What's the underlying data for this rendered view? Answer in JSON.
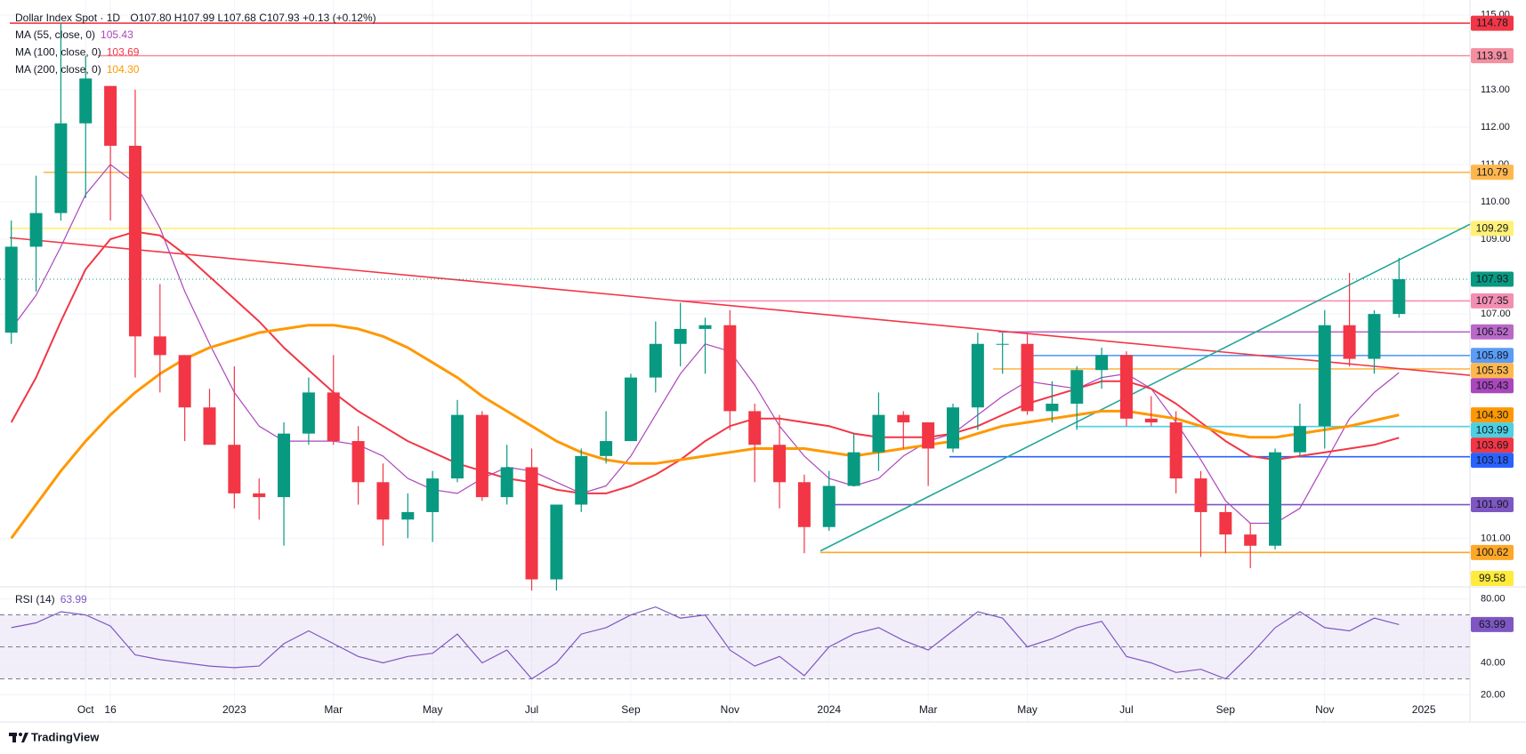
{
  "chart_data": {
    "type": "candlestick",
    "title": "Dollar Index Spot · 1D",
    "quote": "O107.80 H107.99 L107.68 C107.93 +0.13 (+0.12%)",
    "categories": [
      null,
      null,
      null,
      "Oct",
      "16",
      null,
      null,
      null,
      null,
      "2023",
      null,
      null,
      null,
      "Mar",
      null,
      null,
      null,
      "May",
      null,
      null,
      null,
      "Jul",
      null,
      null,
      null,
      "Sep",
      null,
      null,
      null,
      "Nov",
      null,
      null,
      null,
      "2024",
      null,
      null,
      null,
      "Mar",
      null,
      null,
      null,
      "May",
      null,
      null,
      null,
      "Jul",
      null,
      null,
      null,
      "Sep",
      null,
      null,
      null,
      "Nov",
      null,
      null,
      null,
      "2025"
    ],
    "open": [
      106.5,
      108.8,
      109.7,
      112.1,
      113.1,
      111.5,
      106.4,
      105.9,
      104.5,
      103.5,
      102.2,
      102.1,
      103.8,
      104.9,
      103.6,
      102.5,
      101.5,
      101.7,
      102.6,
      104.3,
      102.1,
      102.9,
      99.9,
      101.9,
      103.2,
      103.6,
      105.3,
      106.2,
      106.6,
      106.7,
      104.4,
      103.5,
      102.5,
      101.3,
      102.4,
      103.3,
      104.3,
      104.1,
      103.4,
      104.5,
      106.2,
      106.2,
      104.4,
      104.6,
      105.5,
      105.9,
      104.2,
      104.1,
      102.6,
      101.7,
      101.1,
      100.8,
      103.3,
      104.0,
      106.7,
      105.8,
      107.0,
      null
    ],
    "high": [
      109.5,
      110.7,
      114.78,
      113.91,
      113.1,
      113.0,
      107.8,
      105.9,
      105.0,
      105.6,
      102.6,
      104.1,
      105.3,
      105.9,
      104.0,
      103.0,
      102.2,
      102.8,
      104.7,
      104.4,
      103.5,
      103.4,
      101.9,
      103.4,
      104.4,
      105.4,
      106.8,
      107.3,
      106.9,
      107.1,
      104.6,
      104.3,
      102.7,
      102.8,
      103.8,
      104.9,
      104.4,
      104.1,
      104.6,
      106.5,
      106.5,
      106.5,
      105.2,
      105.6,
      106.1,
      106.0,
      104.8,
      104.4,
      102.8,
      101.9,
      101.4,
      103.4,
      104.6,
      107.1,
      108.1,
      107.1,
      108.5,
      null
    ],
    "low": [
      106.2,
      107.6,
      109.5,
      110.1,
      109.5,
      105.3,
      104.9,
      103.6,
      103.6,
      101.8,
      101.5,
      100.8,
      103.5,
      103.5,
      101.9,
      100.8,
      101.0,
      100.9,
      102.5,
      102.0,
      101.9,
      99.6,
      99.6,
      101.7,
      103.0,
      103.6,
      104.9,
      105.6,
      105.4,
      103.9,
      102.5,
      101.8,
      100.6,
      101.2,
      102.4,
      102.8,
      103.4,
      102.4,
      103.3,
      103.9,
      105.4,
      104.3,
      104.1,
      103.9,
      105.0,
      104.0,
      104.0,
      102.2,
      100.5,
      100.6,
      100.2,
      100.7,
      103.2,
      103.4,
      105.6,
      105.4,
      106.9,
      null
    ],
    "close": [
      108.8,
      109.7,
      112.1,
      113.3,
      111.5,
      106.4,
      105.9,
      104.5,
      103.5,
      102.2,
      102.1,
      103.8,
      104.9,
      103.6,
      102.5,
      101.5,
      101.7,
      102.6,
      104.3,
      102.1,
      102.9,
      99.9,
      101.9,
      103.2,
      103.6,
      105.3,
      106.2,
      106.6,
      106.7,
      104.4,
      103.5,
      102.5,
      101.3,
      102.4,
      103.3,
      104.3,
      104.1,
      103.4,
      104.5,
      106.2,
      106.2,
      104.4,
      104.6,
      105.5,
      105.9,
      104.2,
      104.1,
      102.6,
      101.7,
      101.1,
      100.8,
      103.3,
      104.0,
      106.7,
      105.8,
      107.0,
      107.93,
      null
    ],
    "color_up": "#089981",
    "color_down": "#f23645",
    "ylim": [
      99.7,
      115.4
    ],
    "yticks": [
      {
        "value": 115,
        "label": "115.00"
      },
      {
        "value": 113,
        "label": "113.00"
      },
      {
        "value": 112,
        "label": "112.00"
      },
      {
        "value": 111,
        "label": "111.00"
      },
      {
        "value": 110,
        "label": "110.00"
      },
      {
        "value": 109,
        "label": "109.00"
      },
      {
        "value": 107,
        "label": "107.00"
      },
      {
        "value": 101,
        "label": "101.00"
      }
    ],
    "grid": true,
    "series": [
      {
        "name": "MA (55, close, 0)",
        "color": "#ab47bc",
        "values": [
          106.6,
          107.5,
          108.8,
          110.2,
          111.0,
          110.5,
          109.3,
          107.6,
          106.2,
          104.9,
          104.0,
          103.6,
          103.6,
          103.6,
          103.5,
          103.2,
          102.6,
          102.3,
          102.2,
          102.6,
          102.9,
          102.8,
          102.5,
          102.2,
          102.4,
          103.2,
          104.3,
          105.4,
          106.2,
          106.0,
          105.1,
          104.0,
          103.2,
          102.6,
          102.4,
          102.6,
          103.2,
          103.6,
          103.8,
          104.3,
          104.8,
          105.2,
          105.1,
          105.0,
          105.3,
          105.4,
          105.0,
          104.1,
          103.1,
          102.0,
          101.4,
          101.4,
          101.8,
          103.0,
          104.2,
          104.9,
          105.43,
          null
        ]
      },
      {
        "name": "MA (100, close, 0)",
        "color": "#f23645",
        "values": [
          104.1,
          105.3,
          106.8,
          108.2,
          109.0,
          109.2,
          109.1,
          108.6,
          108.0,
          107.4,
          106.8,
          106.1,
          105.5,
          104.9,
          104.4,
          104.0,
          103.6,
          103.3,
          103.0,
          102.8,
          102.6,
          102.5,
          102.3,
          102.2,
          102.2,
          102.4,
          102.7,
          103.1,
          103.6,
          104.0,
          104.2,
          104.2,
          104.1,
          104.0,
          103.8,
          103.7,
          103.7,
          103.7,
          103.8,
          104.0,
          104.3,
          104.6,
          104.8,
          105.0,
          105.2,
          105.2,
          105.0,
          104.6,
          104.1,
          103.6,
          103.2,
          103.1,
          103.2,
          103.3,
          103.4,
          103.5,
          103.69,
          null
        ]
      },
      {
        "name": "MA (200, close, 0)",
        "color": "#ff9800",
        "values": [
          101.0,
          101.9,
          102.8,
          103.6,
          104.3,
          104.9,
          105.4,
          105.8,
          106.1,
          106.3,
          106.5,
          106.6,
          106.7,
          106.7,
          106.6,
          106.4,
          106.1,
          105.7,
          105.3,
          104.8,
          104.4,
          104.0,
          103.6,
          103.3,
          103.1,
          103.0,
          103.0,
          103.1,
          103.2,
          103.3,
          103.4,
          103.4,
          103.4,
          103.3,
          103.2,
          103.3,
          103.4,
          103.5,
          103.6,
          103.8,
          104.0,
          104.1,
          104.2,
          104.3,
          104.4,
          104.4,
          104.3,
          104.2,
          104.0,
          103.8,
          103.7,
          103.7,
          103.8,
          103.9,
          104.0,
          104.15,
          104.3,
          null
        ],
        "value_labels": [
          null,
          null,
          null,
          null,
          null,
          null,
          null,
          null,
          null,
          null,
          null,
          null,
          null,
          null,
          null,
          null,
          null,
          null,
          null,
          null,
          null,
          null,
          null,
          null,
          null,
          null,
          null,
          null,
          null,
          null,
          null,
          null,
          null,
          null,
          null,
          null,
          null,
          null,
          null,
          null,
          null,
          null,
          null,
          null,
          null,
          null,
          null,
          null,
          null,
          null,
          null,
          null,
          null,
          null,
          null,
          null,
          "104.30",
          null
        ]
      }
    ],
    "levels": [
      {
        "value": 114.78,
        "label": "114.78",
        "color": "#f23645",
        "line": true
      },
      {
        "value": 113.91,
        "label": "113.91",
        "color": "#f48fa0",
        "line": true
      },
      {
        "value": 110.79,
        "label": "110.79",
        "color": "#ffb74d",
        "line": true
      },
      {
        "value": 109.29,
        "label": "109.29",
        "color": "#fff176",
        "line": true
      },
      {
        "value": 107.35,
        "label": "107.35",
        "color": "#f48fb1",
        "line": true
      },
      {
        "value": 106.52,
        "label": "106.52",
        "color": "#ba68c8",
        "line": true
      },
      {
        "value": 105.89,
        "label": "105.89",
        "color": "#5b9cf6",
        "line": true
      },
      {
        "value": 105.53,
        "label": "105.53",
        "color": "#ffb74d",
        "line": true
      },
      {
        "value": 103.99,
        "label": "103.99",
        "color": "#4dd0e1",
        "line": true
      },
      {
        "value": 103.18,
        "label": "103.18",
        "color": "#2962ff",
        "line": true
      },
      {
        "value": 101.9,
        "label": "101.90",
        "color": "#7e57c2",
        "line": true
      },
      {
        "value": 100.62,
        "label": "100.62",
        "color": "#ffa726",
        "line": true
      },
      {
        "value": 99.58,
        "label": "99.58",
        "color": "#ffeb3b",
        "line": false
      }
    ],
    "trendlines": [
      {
        "color": "#f23645",
        "values": [
          109.04,
          105.36
        ]
      },
      {
        "color": "#26a69a",
        "values": [
          100.66,
          109.4
        ]
      }
    ],
    "rsi": {
      "name": "RSI (14)",
      "color": "#7e57c2",
      "values": [
        62,
        65,
        72,
        70,
        63,
        45,
        42,
        40,
        38,
        37,
        38,
        52,
        60,
        52,
        44,
        40,
        44,
        46,
        58,
        40,
        48,
        30,
        40,
        58,
        62,
        70,
        75,
        68,
        70,
        48,
        38,
        44,
        32,
        50,
        58,
        62,
        54,
        48,
        60,
        72,
        68,
        50,
        55,
        62,
        66,
        44,
        40,
        34,
        36,
        30,
        45,
        62,
        72,
        62,
        60,
        68,
        63.99,
        null
      ],
      "ylim": [
        3,
        87
      ],
      "yticks": [
        {
          "value": 80,
          "label": "80.00"
        },
        {
          "value": 40,
          "label": "40.00"
        },
        {
          "value": 20,
          "label": "20.00"
        }
      ],
      "bands": [
        70,
        50,
        30
      ]
    }
  },
  "footer": {
    "brand": "TradingView"
  }
}
